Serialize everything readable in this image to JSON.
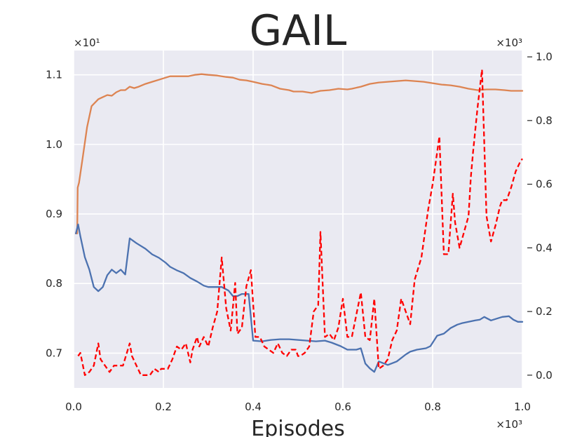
{
  "chart_data": {
    "type": "line",
    "title": "GAIL",
    "xlabel": "Episodes",
    "ylabel": "",
    "ylabel_right": "",
    "xlim": [
      0,
      1000
    ],
    "ylim_left": [
      6.5,
      11.35
    ],
    "ylim_right": [
      -0.04,
      1.02
    ],
    "grid": true,
    "x_multiplier": "×10³",
    "y_left_multiplier": "×10¹",
    "y_right_multiplier": "×10³",
    "x_ticks": [
      0,
      200,
      400,
      600,
      800,
      1000
    ],
    "x_tick_labels": [
      "0.0",
      "0.2",
      "0.4",
      "0.6",
      "0.8",
      "1.0"
    ],
    "y_left_ticks": [
      7,
      8,
      9,
      10,
      11
    ],
    "y_left_tick_labels": [
      "0.7",
      "0.8",
      "0.9",
      "1.0",
      "1.1"
    ],
    "y_right_ticks": [
      0,
      0.2,
      0.4,
      0.6,
      0.8,
      1.0
    ],
    "y_right_tick_labels": [
      "0.0",
      "0.2",
      "0.4",
      "0.6",
      "0.8",
      "1.0"
    ],
    "series": [
      {
        "axis": "left",
        "color": "#dd8452",
        "style": "solid",
        "points": [
          [
            5,
            8.72
          ],
          [
            8,
            8.72
          ],
          [
            9,
            9.38
          ],
          [
            12,
            9.45
          ],
          [
            20,
            9.8
          ],
          [
            30,
            10.25
          ],
          [
            40,
            10.55
          ],
          [
            55,
            10.65
          ],
          [
            65,
            10.68
          ],
          [
            75,
            10.71
          ],
          [
            85,
            10.7
          ],
          [
            95,
            10.75
          ],
          [
            105,
            10.78
          ],
          [
            115,
            10.78
          ],
          [
            125,
            10.83
          ],
          [
            135,
            10.81
          ],
          [
            145,
            10.83
          ],
          [
            160,
            10.87
          ],
          [
            175,
            10.9
          ],
          [
            190,
            10.93
          ],
          [
            200,
            10.95
          ],
          [
            215,
            10.98
          ],
          [
            230,
            10.98
          ],
          [
            255,
            10.98
          ],
          [
            270,
            11.0
          ],
          [
            285,
            11.01
          ],
          [
            300,
            11.0
          ],
          [
            320,
            10.99
          ],
          [
            340,
            10.97
          ],
          [
            355,
            10.96
          ],
          [
            370,
            10.93
          ],
          [
            385,
            10.92
          ],
          [
            400,
            10.9
          ],
          [
            420,
            10.87
          ],
          [
            440,
            10.85
          ],
          [
            460,
            10.8
          ],
          [
            480,
            10.78
          ],
          [
            490,
            10.76
          ],
          [
            510,
            10.76
          ],
          [
            530,
            10.74
          ],
          [
            550,
            10.77
          ],
          [
            570,
            10.78
          ],
          [
            590,
            10.8
          ],
          [
            610,
            10.79
          ],
          [
            620,
            10.8
          ],
          [
            640,
            10.83
          ],
          [
            660,
            10.87
          ],
          [
            680,
            10.89
          ],
          [
            700,
            10.9
          ],
          [
            720,
            10.91
          ],
          [
            740,
            10.92
          ],
          [
            760,
            10.91
          ],
          [
            780,
            10.9
          ],
          [
            800,
            10.88
          ],
          [
            820,
            10.86
          ],
          [
            840,
            10.85
          ],
          [
            860,
            10.83
          ],
          [
            880,
            10.8
          ],
          [
            900,
            10.78
          ],
          [
            920,
            10.79
          ],
          [
            940,
            10.79
          ],
          [
            960,
            10.78
          ],
          [
            975,
            10.77
          ],
          [
            1000,
            10.77
          ]
        ]
      },
      {
        "axis": "left",
        "color": "#4c72b0",
        "style": "solid",
        "points": [
          [
            5,
            8.72
          ],
          [
            10,
            8.85
          ],
          [
            15,
            8.68
          ],
          [
            25,
            8.38
          ],
          [
            35,
            8.2
          ],
          [
            45,
            7.95
          ],
          [
            55,
            7.89
          ],
          [
            65,
            7.95
          ],
          [
            75,
            8.12
          ],
          [
            85,
            8.2
          ],
          [
            95,
            8.15
          ],
          [
            105,
            8.2
          ],
          [
            115,
            8.13
          ],
          [
            125,
            8.65
          ],
          [
            140,
            8.58
          ],
          [
            160,
            8.5
          ],
          [
            175,
            8.42
          ],
          [
            190,
            8.37
          ],
          [
            205,
            8.3
          ],
          [
            215,
            8.24
          ],
          [
            230,
            8.19
          ],
          [
            245,
            8.15
          ],
          [
            260,
            8.08
          ],
          [
            275,
            8.03
          ],
          [
            290,
            7.97
          ],
          [
            300,
            7.95
          ],
          [
            330,
            7.95
          ],
          [
            345,
            7.9
          ],
          [
            355,
            7.82
          ],
          [
            365,
            7.82
          ],
          [
            375,
            7.85
          ],
          [
            390,
            7.85
          ],
          [
            400,
            7.18
          ],
          [
            420,
            7.17
          ],
          [
            440,
            7.19
          ],
          [
            460,
            7.2
          ],
          [
            480,
            7.2
          ],
          [
            500,
            7.19
          ],
          [
            520,
            7.18
          ],
          [
            540,
            7.17
          ],
          [
            560,
            7.18
          ],
          [
            575,
            7.15
          ],
          [
            595,
            7.1
          ],
          [
            610,
            7.05
          ],
          [
            630,
            7.05
          ],
          [
            640,
            7.07
          ],
          [
            650,
            6.85
          ],
          [
            660,
            6.78
          ],
          [
            670,
            6.73
          ],
          [
            680,
            6.88
          ],
          [
            700,
            6.83
          ],
          [
            720,
            6.88
          ],
          [
            740,
            6.98
          ],
          [
            750,
            7.02
          ],
          [
            765,
            7.05
          ],
          [
            785,
            7.07
          ],
          [
            795,
            7.1
          ],
          [
            810,
            7.25
          ],
          [
            825,
            7.28
          ],
          [
            840,
            7.36
          ],
          [
            855,
            7.41
          ],
          [
            865,
            7.43
          ],
          [
            880,
            7.45
          ],
          [
            895,
            7.47
          ],
          [
            905,
            7.48
          ],
          [
            915,
            7.52
          ],
          [
            930,
            7.47
          ],
          [
            945,
            7.5
          ],
          [
            955,
            7.52
          ],
          [
            970,
            7.53
          ],
          [
            980,
            7.48
          ],
          [
            990,
            7.45
          ],
          [
            1000,
            7.45
          ]
        ]
      },
      {
        "axis": "right",
        "color": "#ff0000",
        "style": "dashed",
        "points": [
          [
            10,
            0.06
          ],
          [
            15,
            0.07
          ],
          [
            25,
            0.0
          ],
          [
            35,
            0.01
          ],
          [
            45,
            0.03
          ],
          [
            55,
            0.1
          ],
          [
            60,
            0.05
          ],
          [
            65,
            0.04
          ],
          [
            75,
            0.02
          ],
          [
            80,
            0.01
          ],
          [
            90,
            0.03
          ],
          [
            100,
            0.03
          ],
          [
            110,
            0.03
          ],
          [
            125,
            0.1
          ],
          [
            130,
            0.06
          ],
          [
            140,
            0.03
          ],
          [
            150,
            0.0
          ],
          [
            160,
            0.0
          ],
          [
            170,
            0.0
          ],
          [
            180,
            0.02
          ],
          [
            190,
            0.01
          ],
          [
            195,
            0.02
          ],
          [
            210,
            0.02
          ],
          [
            220,
            0.05
          ],
          [
            230,
            0.09
          ],
          [
            240,
            0.08
          ],
          [
            250,
            0.1
          ],
          [
            260,
            0.04
          ],
          [
            265,
            0.08
          ],
          [
            275,
            0.12
          ],
          [
            280,
            0.09
          ],
          [
            290,
            0.12
          ],
          [
            300,
            0.09
          ],
          [
            310,
            0.15
          ],
          [
            320,
            0.2
          ],
          [
            330,
            0.37
          ],
          [
            340,
            0.21
          ],
          [
            350,
            0.14
          ],
          [
            360,
            0.29
          ],
          [
            365,
            0.13
          ],
          [
            375,
            0.15
          ],
          [
            385,
            0.28
          ],
          [
            395,
            0.33
          ],
          [
            405,
            0.12
          ],
          [
            415,
            0.12
          ],
          [
            425,
            0.09
          ],
          [
            435,
            0.08
          ],
          [
            445,
            0.07
          ],
          [
            455,
            0.1
          ],
          [
            465,
            0.07
          ],
          [
            475,
            0.06
          ],
          [
            485,
            0.08
          ],
          [
            495,
            0.08
          ],
          [
            500,
            0.06
          ],
          [
            505,
            0.06
          ],
          [
            515,
            0.07
          ],
          [
            525,
            0.09
          ],
          [
            535,
            0.2
          ],
          [
            545,
            0.22
          ],
          [
            550,
            0.45
          ],
          [
            560,
            0.12
          ],
          [
            570,
            0.13
          ],
          [
            580,
            0.11
          ],
          [
            590,
            0.15
          ],
          [
            600,
            0.24
          ],
          [
            610,
            0.12
          ],
          [
            620,
            0.12
          ],
          [
            630,
            0.19
          ],
          [
            640,
            0.26
          ],
          [
            650,
            0.12
          ],
          [
            660,
            0.11
          ],
          [
            670,
            0.24
          ],
          [
            680,
            0.02
          ],
          [
            690,
            0.03
          ],
          [
            700,
            0.05
          ],
          [
            710,
            0.11
          ],
          [
            720,
            0.14
          ],
          [
            730,
            0.24
          ],
          [
            740,
            0.2
          ],
          [
            750,
            0.16
          ],
          [
            760,
            0.3
          ],
          [
            775,
            0.37
          ],
          [
            790,
            0.52
          ],
          [
            800,
            0.6
          ],
          [
            815,
            0.75
          ],
          [
            825,
            0.38
          ],
          [
            835,
            0.38
          ],
          [
            845,
            0.57
          ],
          [
            850,
            0.48
          ],
          [
            860,
            0.4
          ],
          [
            870,
            0.45
          ],
          [
            880,
            0.5
          ],
          [
            885,
            0.62
          ],
          [
            890,
            0.7
          ],
          [
            900,
            0.84
          ],
          [
            910,
            0.96
          ],
          [
            920,
            0.5
          ],
          [
            930,
            0.42
          ],
          [
            940,
            0.47
          ],
          [
            950,
            0.53
          ],
          [
            955,
            0.55
          ],
          [
            965,
            0.55
          ],
          [
            975,
            0.59
          ],
          [
            985,
            0.64
          ],
          [
            995,
            0.67
          ],
          [
            1000,
            0.68
          ]
        ]
      }
    ]
  }
}
